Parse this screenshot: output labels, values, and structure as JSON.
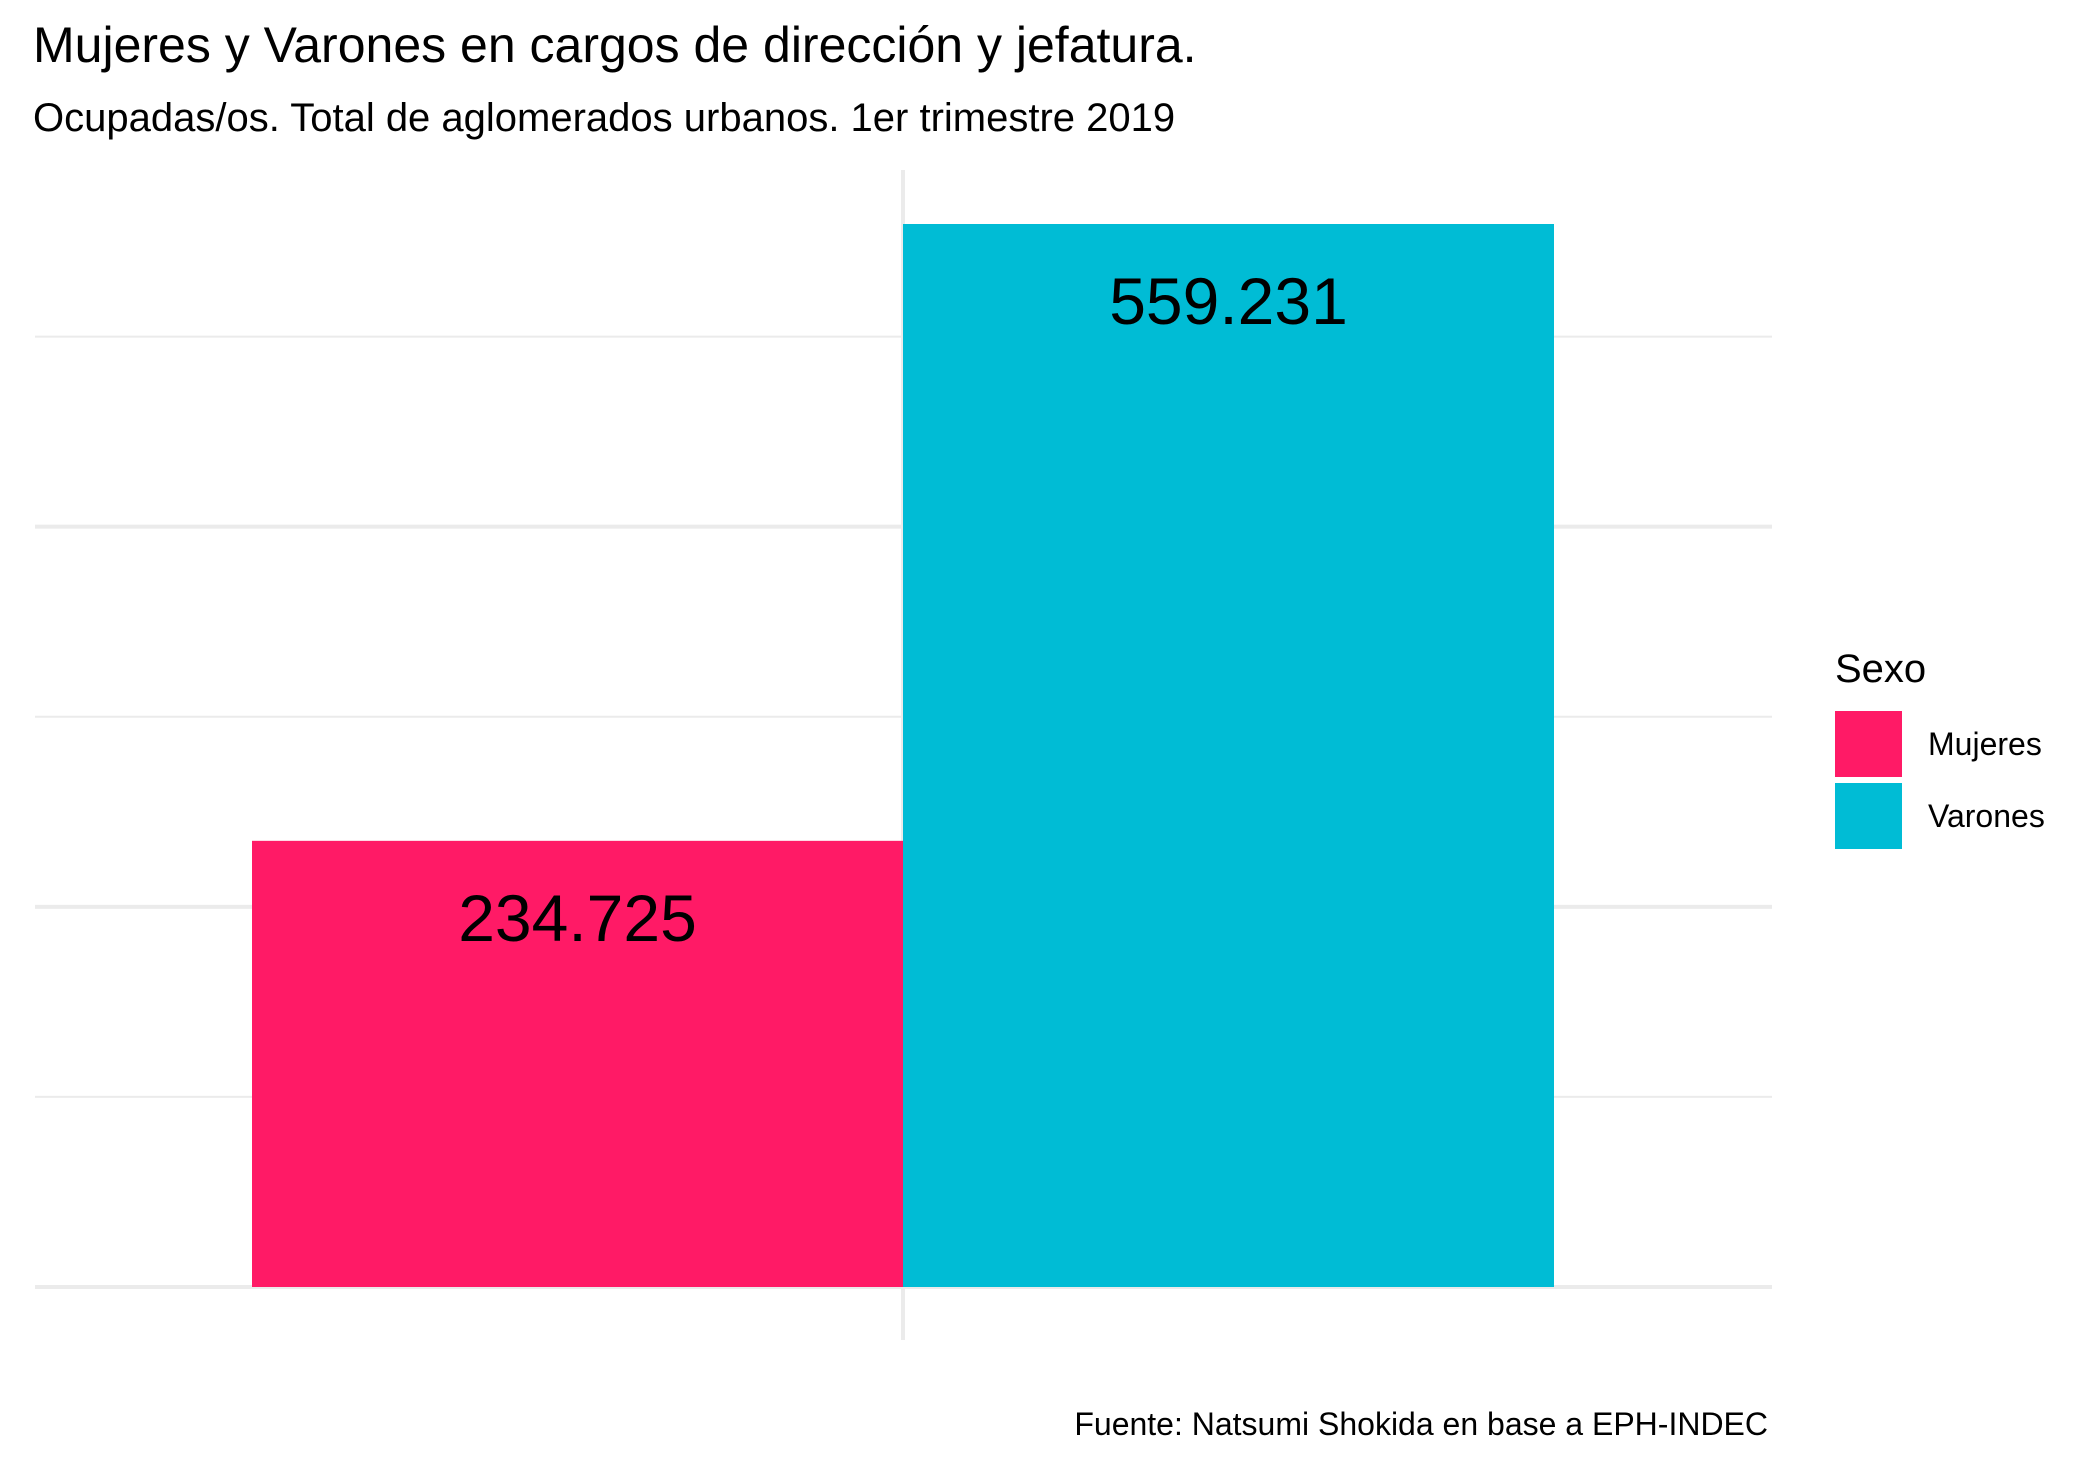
{
  "title": "Mujeres y Varones en cargos de dirección y jefatura.",
  "subtitle": "Ocupadas/os. Total de aglomerados urbanos. 1er trimestre 2019",
  "caption": "Fuente: Natsumi Shokida en base a EPH-INDEC",
  "legend": {
    "title": "Sexo",
    "items": [
      {
        "label": "Mujeres",
        "color": "#FF1A66"
      },
      {
        "label": "Varones",
        "color": "#00BCD5"
      }
    ]
  },
  "chart_data": {
    "type": "bar",
    "categories": [
      "Mujeres",
      "Varones"
    ],
    "values": [
      234725,
      559231
    ],
    "value_labels": [
      "234.725",
      "559.231"
    ],
    "colors": [
      "#FF1A66",
      "#00BCD5"
    ],
    "ylim": [
      0,
      559231
    ],
    "grid": true,
    "legend_position": "right",
    "xlabel": "",
    "ylabel": ""
  }
}
